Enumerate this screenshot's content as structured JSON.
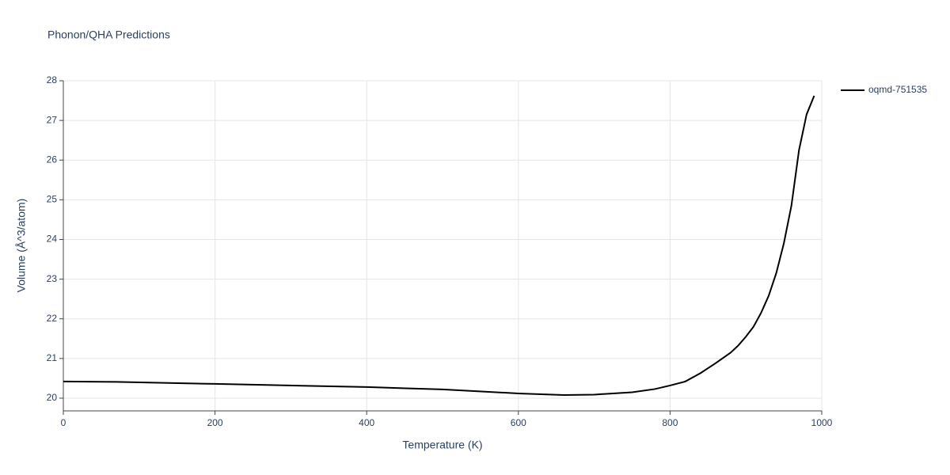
{
  "chart_data": {
    "type": "line",
    "title": "Phonon/QHA Predictions",
    "x_label": "Temperature (K)",
    "y_label": "Volume (Å^3/atom)",
    "x": [
      0,
      70,
      200,
      400,
      500,
      600,
      660,
      700,
      750,
      780,
      800,
      820,
      840,
      860,
      880,
      890,
      900,
      910,
      920,
      930,
      940,
      950,
      960,
      970,
      980,
      990
    ],
    "series": [
      {
        "name": "oqmd-751535",
        "color": "#000000",
        "values": [
          20.42,
          20.41,
          20.36,
          20.28,
          20.22,
          20.12,
          20.08,
          20.09,
          20.15,
          20.23,
          20.32,
          20.42,
          20.63,
          20.88,
          21.15,
          21.33,
          21.55,
          21.8,
          22.15,
          22.58,
          23.15,
          23.9,
          24.85,
          26.25,
          27.15,
          27.62
        ]
      }
    ],
    "xlim": [
      0,
      1000
    ],
    "xticks": [
      0,
      200,
      400,
      600,
      800,
      1000
    ],
    "ylim": [
      19.68,
      28
    ],
    "yticks": [
      20,
      21,
      22,
      23,
      24,
      25,
      26,
      27,
      28
    ],
    "grid": true,
    "legend": "right"
  }
}
